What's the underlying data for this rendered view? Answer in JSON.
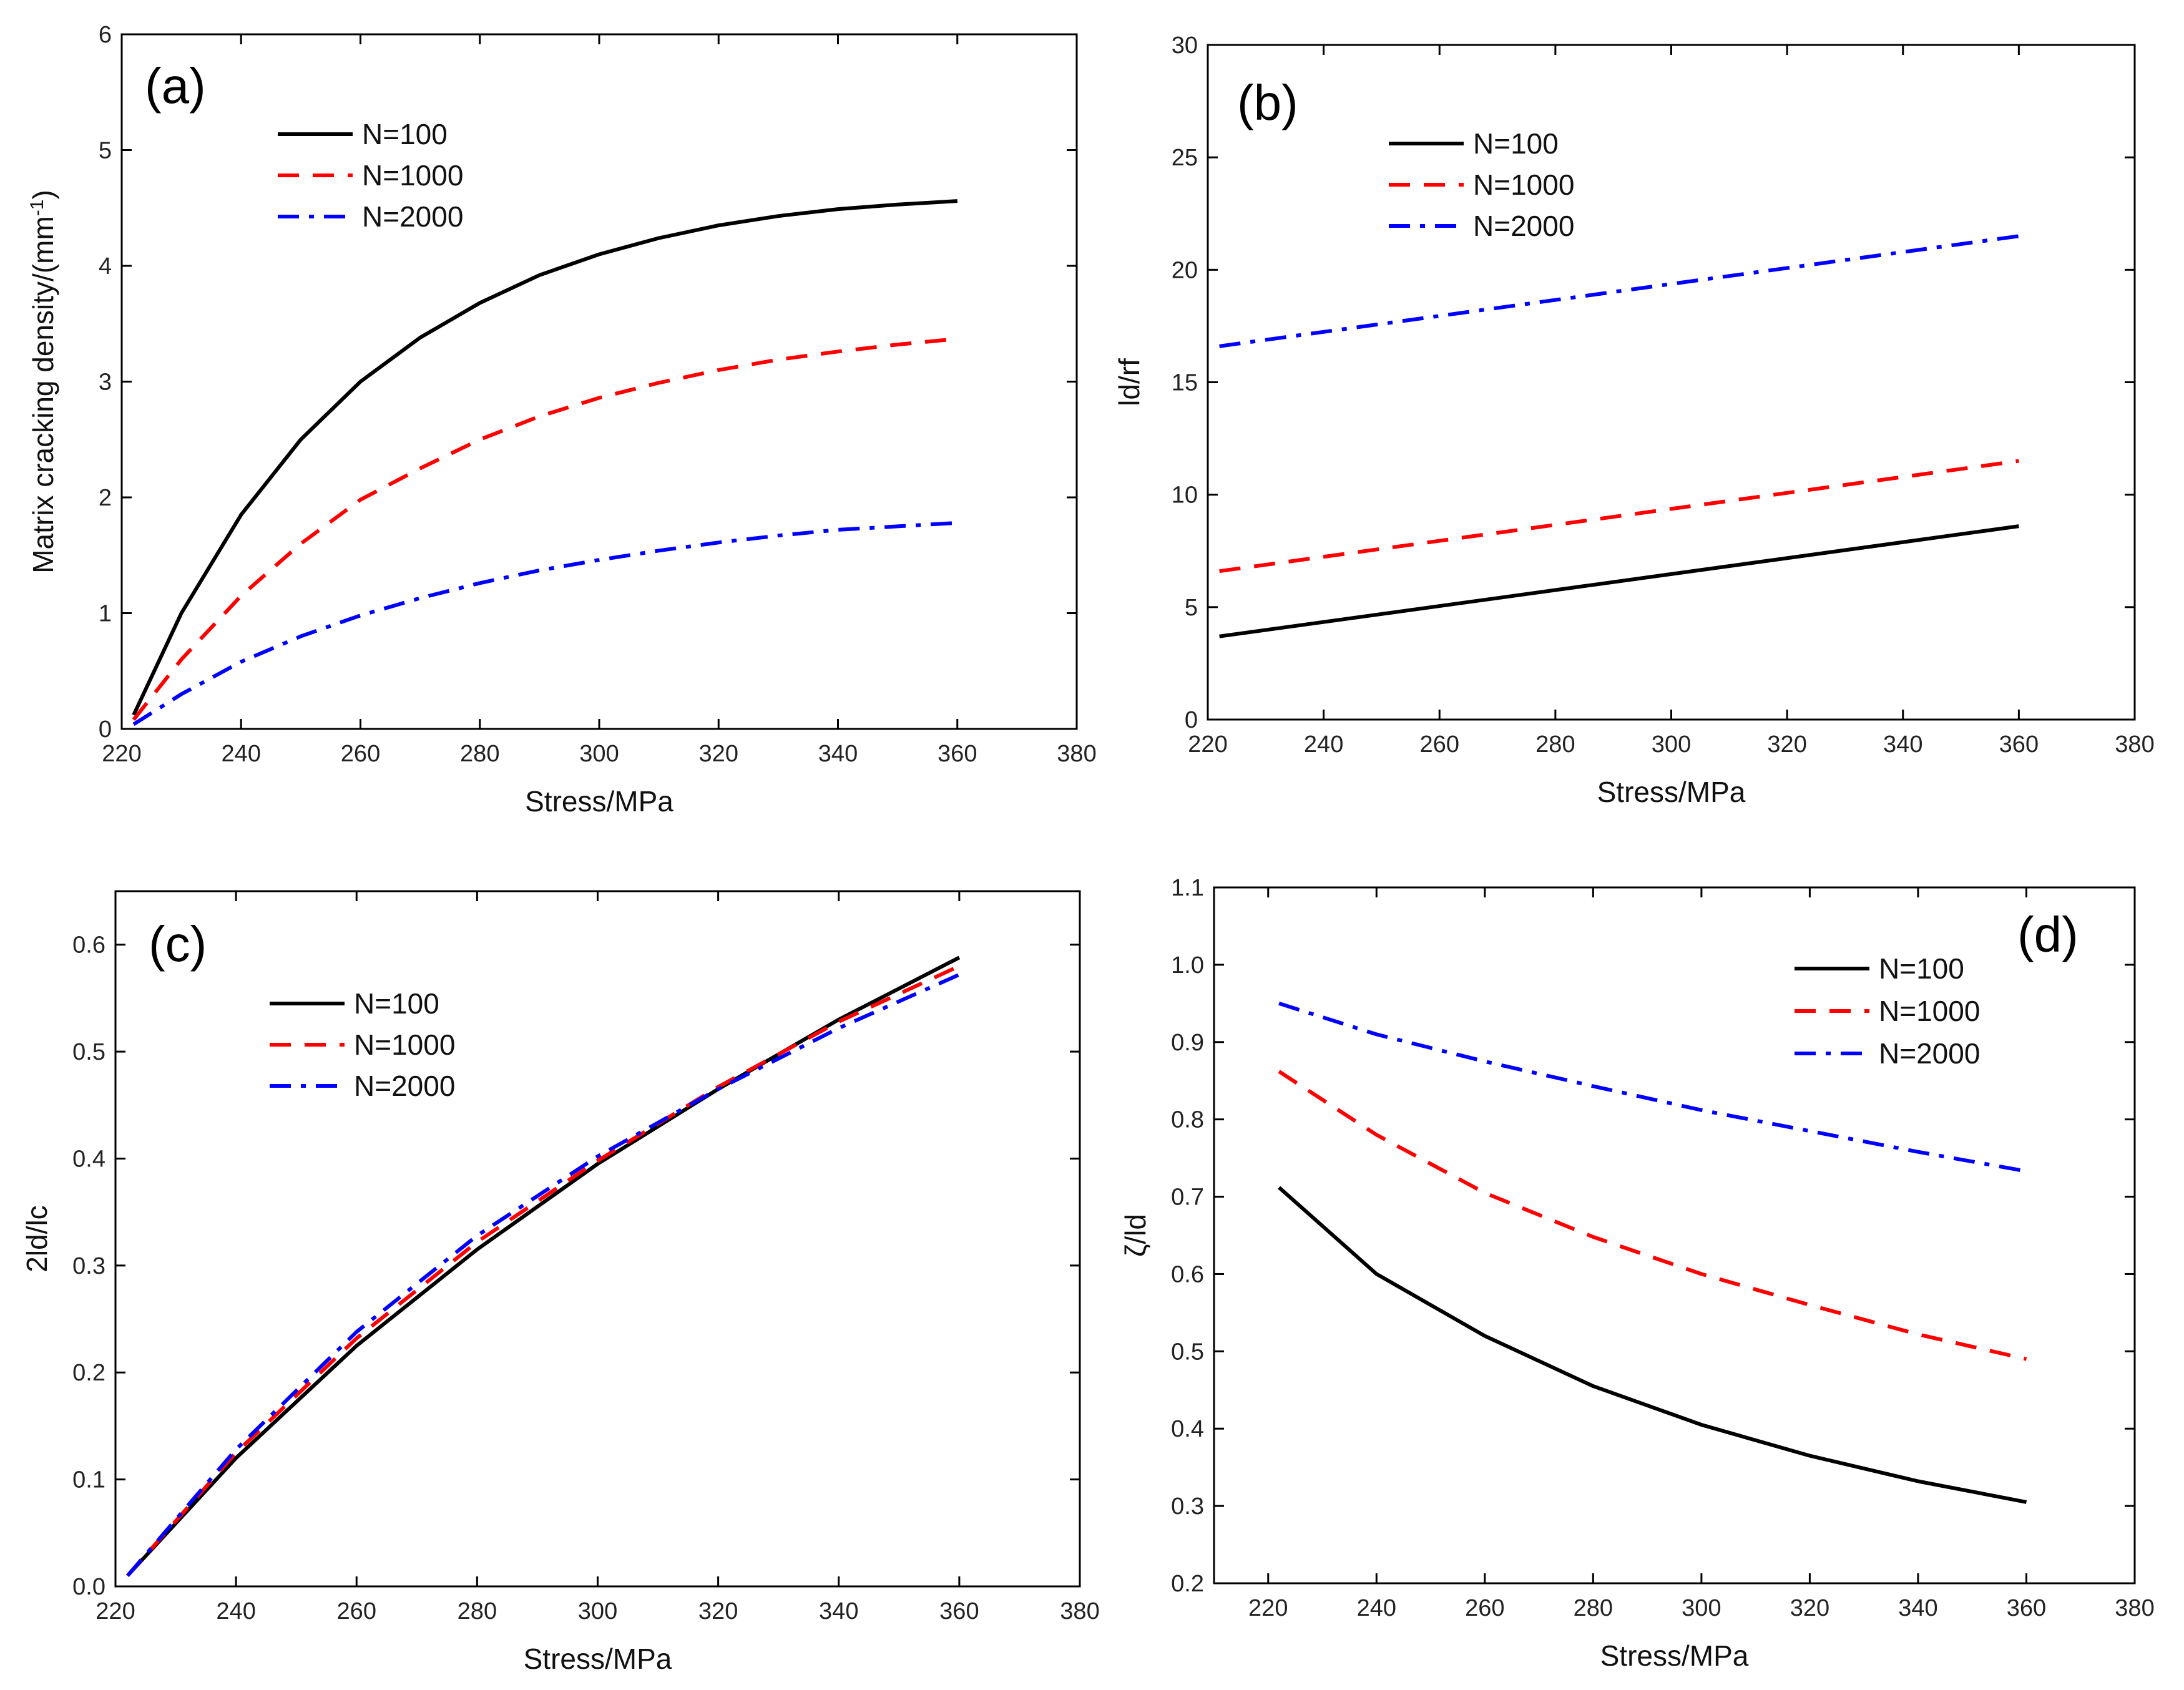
{
  "chart_data": [
    {
      "type": "line",
      "panel_label": "(a)",
      "title": "",
      "xlabel": "Stress/MPa",
      "ylabel": "Matrix cracking density/(mm",
      "ylabel_sup": "-1",
      "ylabel_end": ")",
      "xlim": [
        220,
        380
      ],
      "ylim": [
        0,
        6
      ],
      "xticks": [
        "220",
        "240",
        "260",
        "280",
        "300",
        "320",
        "340",
        "360",
        "380"
      ],
      "yticks": [
        "0",
        "1",
        "2",
        "3",
        "4",
        "5",
        "6"
      ],
      "grid": false,
      "legend_position": "top-left",
      "x": [
        222,
        230,
        240,
        250,
        260,
        270,
        280,
        290,
        300,
        310,
        320,
        330,
        340,
        350,
        360
      ],
      "series": [
        {
          "name": "N=100",
          "color": "#000000",
          "dash": "solid",
          "values": [
            0.12,
            1.0,
            1.85,
            2.5,
            3.0,
            3.38,
            3.68,
            3.92,
            4.1,
            4.24,
            4.35,
            4.43,
            4.49,
            4.53,
            4.56
          ]
        },
        {
          "name": "N=1000",
          "color": "#ff0000",
          "dash": "dashed",
          "values": [
            0.08,
            0.6,
            1.15,
            1.6,
            1.98,
            2.25,
            2.5,
            2.7,
            2.86,
            2.99,
            3.1,
            3.19,
            3.26,
            3.32,
            3.37
          ]
        },
        {
          "name": "N=2000",
          "color": "#0000ff",
          "dash": "dashdot",
          "values": [
            0.04,
            0.3,
            0.58,
            0.8,
            0.98,
            1.13,
            1.26,
            1.37,
            1.46,
            1.54,
            1.61,
            1.67,
            1.72,
            1.75,
            1.78
          ]
        }
      ]
    },
    {
      "type": "line",
      "panel_label": "(b)",
      "title": "",
      "xlabel": "Stress/MPa",
      "ylabel": "ld/rf",
      "xlim": [
        220,
        380
      ],
      "ylim": [
        0,
        30
      ],
      "xticks": [
        "220",
        "240",
        "260",
        "280",
        "300",
        "320",
        "340",
        "360",
        "380"
      ],
      "yticks": [
        "0",
        "5",
        "10",
        "15",
        "20",
        "25",
        "30"
      ],
      "grid": false,
      "legend_position": "top-left",
      "x": [
        222,
        360
      ],
      "series": [
        {
          "name": "N=100",
          "color": "#000000",
          "dash": "solid",
          "values": [
            3.7,
            8.6
          ]
        },
        {
          "name": "N=1000",
          "color": "#ff0000",
          "dash": "dashed",
          "values": [
            6.6,
            11.5
          ]
        },
        {
          "name": "N=2000",
          "color": "#0000ff",
          "dash": "dashdot",
          "values": [
            16.6,
            21.5
          ]
        }
      ]
    },
    {
      "type": "line",
      "panel_label": "(c)",
      "title": "",
      "xlabel": "Stress/MPa",
      "ylabel": "2ld/lc",
      "xlim": [
        220,
        380
      ],
      "ylim": [
        0.0,
        0.65
      ],
      "xticks": [
        "220",
        "240",
        "260",
        "280",
        "300",
        "320",
        "340",
        "360",
        "380"
      ],
      "yticks": [
        "0.0",
        "0.1",
        "0.2",
        "0.3",
        "0.4",
        "0.5",
        "0.6"
      ],
      "grid": false,
      "legend_position": "top-left",
      "x": [
        222,
        240,
        260,
        280,
        300,
        320,
        340,
        360
      ],
      "series": [
        {
          "name": "N=100",
          "color": "#000000",
          "dash": "solid",
          "values": [
            0.01,
            0.12,
            0.225,
            0.315,
            0.395,
            0.465,
            0.53,
            0.588
          ]
        },
        {
          "name": "N=1000",
          "color": "#ff0000",
          "dash": "dashed",
          "values": [
            0.01,
            0.125,
            0.232,
            0.322,
            0.398,
            0.467,
            0.528,
            0.58
          ]
        },
        {
          "name": "N=2000",
          "color": "#0000ff",
          "dash": "dashdot",
          "values": [
            0.01,
            0.128,
            0.238,
            0.328,
            0.402,
            0.465,
            0.522,
            0.572
          ]
        }
      ]
    },
    {
      "type": "line",
      "panel_label": "(d)",
      "title": "",
      "xlabel": "Stress/MPa",
      "ylabel": "ζ/ld",
      "xlim": [
        210,
        380
      ],
      "ylim": [
        0.2,
        1.1
      ],
      "xticks": [
        "220",
        "240",
        "260",
        "280",
        "300",
        "320",
        "340",
        "360",
        "380"
      ],
      "yticks": [
        "0.2",
        "0.3",
        "0.4",
        "0.5",
        "0.6",
        "0.7",
        "0.8",
        "0.9",
        "1.0",
        "1.1"
      ],
      "grid": false,
      "legend_position": "top-right",
      "x": [
        222,
        240,
        260,
        280,
        300,
        320,
        340,
        360
      ],
      "series": [
        {
          "name": "N=100",
          "color": "#000000",
          "dash": "solid",
          "values": [
            0.712,
            0.6,
            0.52,
            0.455,
            0.405,
            0.365,
            0.332,
            0.305
          ]
        },
        {
          "name": "N=1000",
          "color": "#ff0000",
          "dash": "dashed",
          "values": [
            0.862,
            0.78,
            0.705,
            0.648,
            0.6,
            0.56,
            0.522,
            0.49
          ]
        },
        {
          "name": "N=2000",
          "color": "#0000ff",
          "dash": "dashdot",
          "values": [
            0.95,
            0.91,
            0.875,
            0.843,
            0.812,
            0.785,
            0.758,
            0.733
          ]
        }
      ]
    }
  ]
}
